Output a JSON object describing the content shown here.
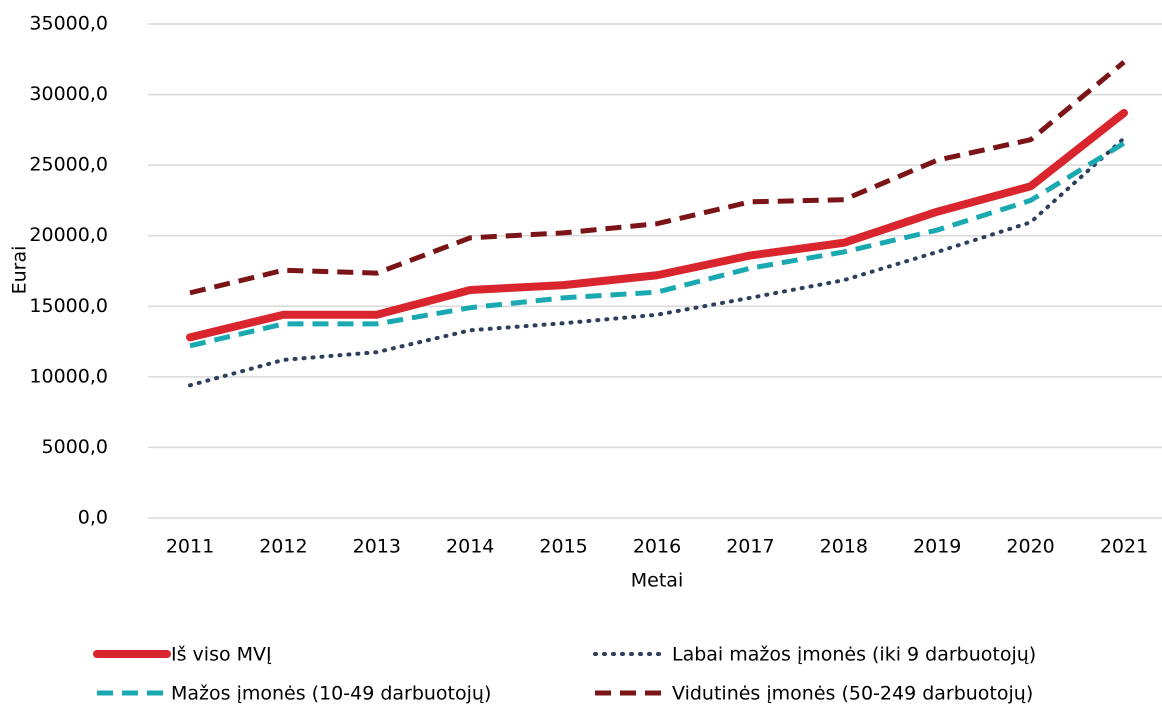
{
  "chart_data": {
    "type": "line",
    "xlabel": "Metai",
    "ylabel": "Eurai",
    "categories": [
      "2011",
      "2012",
      "2013",
      "2014",
      "2015",
      "2016",
      "2017",
      "2018",
      "2019",
      "2020",
      "2021"
    ],
    "series": [
      {
        "name": "Iš viso MVĮ",
        "color": "#d9262e",
        "style": "solid",
        "values": [
          12800,
          14400,
          14400,
          16150,
          16500,
          17200,
          18600,
          19500,
          21700,
          23500,
          28700
        ]
      },
      {
        "name": "Labai mažos įmonės (iki 9 darbuotojų)",
        "color": "#2e3f5c",
        "style": "dotted",
        "values": [
          9400,
          11200,
          11750,
          13300,
          13800,
          14400,
          15600,
          16850,
          18850,
          20950,
          26900
        ]
      },
      {
        "name": "Mažos įmonės (10-49 darbuotojų)",
        "color": "#1aa9b0",
        "style": "dashed",
        "values": [
          12200,
          13750,
          13750,
          14900,
          15600,
          16000,
          17700,
          18850,
          20400,
          22500,
          26550
        ]
      },
      {
        "name": "Vidutinės įmonės (50-249 darbuotojų)",
        "color": "#7a1416",
        "style": "dashed",
        "values": [
          15950,
          17550,
          17350,
          19850,
          20200,
          20850,
          22400,
          22550,
          25350,
          26800,
          32300
        ]
      }
    ],
    "ylim": [
      0,
      35000
    ],
    "yticks": [
      {
        "value": 0,
        "label": "0,0"
      },
      {
        "value": 5000,
        "label": "5000,0"
      },
      {
        "value": 10000,
        "label": "10000,0"
      },
      {
        "value": 15000,
        "label": "15000,0"
      },
      {
        "value": 20000,
        "label": "20000,0"
      },
      {
        "value": 25000,
        "label": "25000,0"
      },
      {
        "value": 30000,
        "label": "30000,0"
      },
      {
        "value": 35000,
        "label": "35000,0"
      }
    ],
    "grid": true,
    "legend": "bottom"
  }
}
